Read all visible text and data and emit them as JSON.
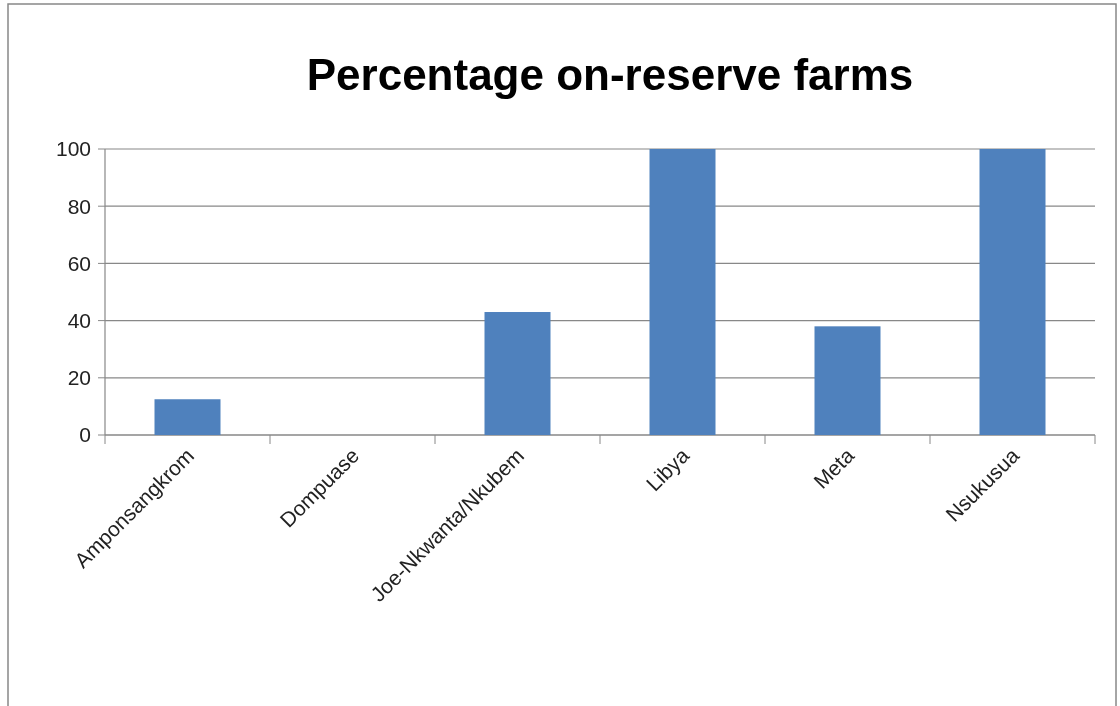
{
  "chart_data": {
    "type": "bar",
    "title": "Percentage on-reserve farms",
    "categories": [
      "Amponsangkrom",
      "Dompuase",
      "Joe-Nkwanta/Nkubem",
      "Libya",
      "Meta",
      "Nsukusua"
    ],
    "values": [
      12.5,
      0,
      43,
      100,
      38,
      100
    ],
    "color": "#4f81bd",
    "ylim": [
      0,
      100
    ],
    "yticks": [
      0,
      20,
      40,
      60,
      80,
      100
    ],
    "grid": "y"
  }
}
